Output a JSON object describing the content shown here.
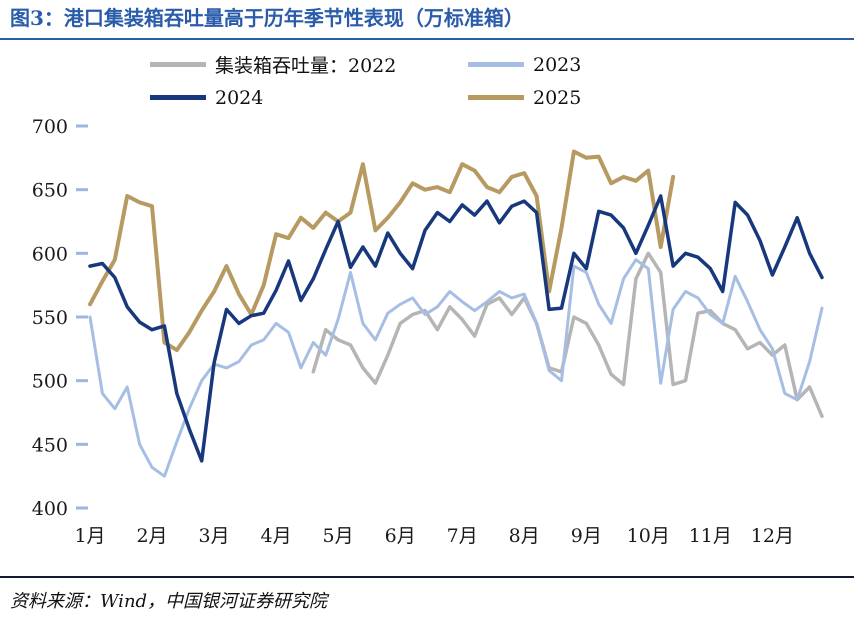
{
  "figure": {
    "title": "图3：港口集装箱吞吐量高于历年季节性表现（万标准箱）",
    "source": "资料来源：Wind，中国银河证券研究院"
  },
  "chart_data": {
    "type": "line",
    "title": "港口集装箱吞吐量高于历年季节性表现",
    "unit": "万标准箱",
    "legend_position": "top",
    "grid": false,
    "x_axis": {
      "tick_labels": [
        "1月",
        "2月",
        "3月",
        "4月",
        "5月",
        "6月",
        "7月",
        "8月",
        "9月",
        "10月",
        "11月",
        "12月"
      ],
      "points_per_month": 5
    },
    "y_axis": {
      "min": 400,
      "max": 700,
      "ticks": [
        400,
        450,
        500,
        550,
        600,
        650,
        700
      ]
    },
    "draw_order": [
      0,
      1,
      3,
      2
    ],
    "series": [
      {
        "name": "集装箱吞吐量：2022",
        "year": "2022",
        "color": "#b5b5b5",
        "stroke_width": 3.5,
        "values": [
          null,
          null,
          null,
          null,
          null,
          null,
          null,
          null,
          null,
          null,
          null,
          null,
          null,
          null,
          null,
          null,
          null,
          null,
          507,
          540,
          532,
          528,
          510,
          498,
          520,
          545,
          552,
          555,
          540,
          558,
          548,
          535,
          560,
          565,
          552,
          565,
          545,
          510,
          507,
          550,
          545,
          528,
          505,
          497,
          580,
          600,
          585,
          497,
          500,
          553,
          555,
          545,
          540,
          525,
          530,
          520,
          528,
          485,
          495,
          472
        ]
      },
      {
        "name": "2023",
        "year": "2023",
        "color": "#a6bee4",
        "stroke_width": 3,
        "values": [
          550,
          490,
          478,
          495,
          450,
          432,
          425,
          452,
          478,
          500,
          513,
          510,
          515,
          528,
          532,
          545,
          538,
          510,
          530,
          520,
          548,
          585,
          545,
          532,
          553,
          560,
          565,
          552,
          558,
          570,
          562,
          555,
          562,
          570,
          565,
          568,
          545,
          508,
          500,
          590,
          585,
          560,
          545,
          580,
          595,
          588,
          498,
          556,
          570,
          565,
          552,
          545,
          582,
          562,
          540,
          525,
          490,
          485,
          515,
          557
        ]
      },
      {
        "name": "2024",
        "year": "2024",
        "color": "#17387c",
        "stroke_width": 3.5,
        "values": [
          590,
          592,
          581,
          558,
          546,
          540,
          543,
          490,
          462,
          437,
          514,
          556,
          545,
          551,
          553,
          571,
          594,
          563,
          580,
          603,
          625,
          589,
          605,
          590,
          616,
          600,
          588,
          618,
          632,
          625,
          638,
          630,
          641,
          624,
          637,
          641,
          632,
          556,
          557,
          600,
          588,
          633,
          630,
          620,
          600,
          622,
          645,
          590,
          600,
          597,
          588,
          570,
          640,
          630,
          610,
          583,
          605,
          628,
          600,
          581
        ]
      },
      {
        "name": "2025",
        "year": "2025",
        "color": "#b79a62",
        "stroke_width": 4,
        "values": [
          560,
          578,
          595,
          645,
          640,
          637,
          530,
          524,
          538,
          555,
          570,
          590,
          568,
          552,
          575,
          615,
          612,
          628,
          620,
          632,
          625,
          632,
          670,
          618,
          628,
          640,
          655,
          650,
          652,
          648,
          670,
          665,
          652,
          648,
          660,
          663,
          645,
          570,
          620,
          680,
          675,
          676,
          655,
          660,
          657,
          665,
          605,
          660,
          null,
          null,
          null,
          null,
          null,
          null,
          null,
          null,
          null,
          null,
          null,
          null
        ]
      }
    ]
  }
}
